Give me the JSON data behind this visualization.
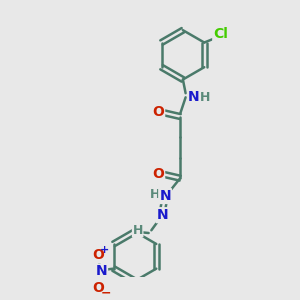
{
  "background_color": "#e8e8e8",
  "bond_color": "#4a7a6a",
  "bond_width": 1.8,
  "atom_colors": {
    "C": "#4a7a6a",
    "N": "#1a1acc",
    "O": "#cc2200",
    "Cl": "#44cc00",
    "H": "#5a8a7a"
  },
  "font_size_atom": 10,
  "figsize": [
    3.0,
    3.0
  ],
  "dpi": 100,
  "xlim": [
    0,
    10
  ],
  "ylim": [
    0,
    10
  ]
}
